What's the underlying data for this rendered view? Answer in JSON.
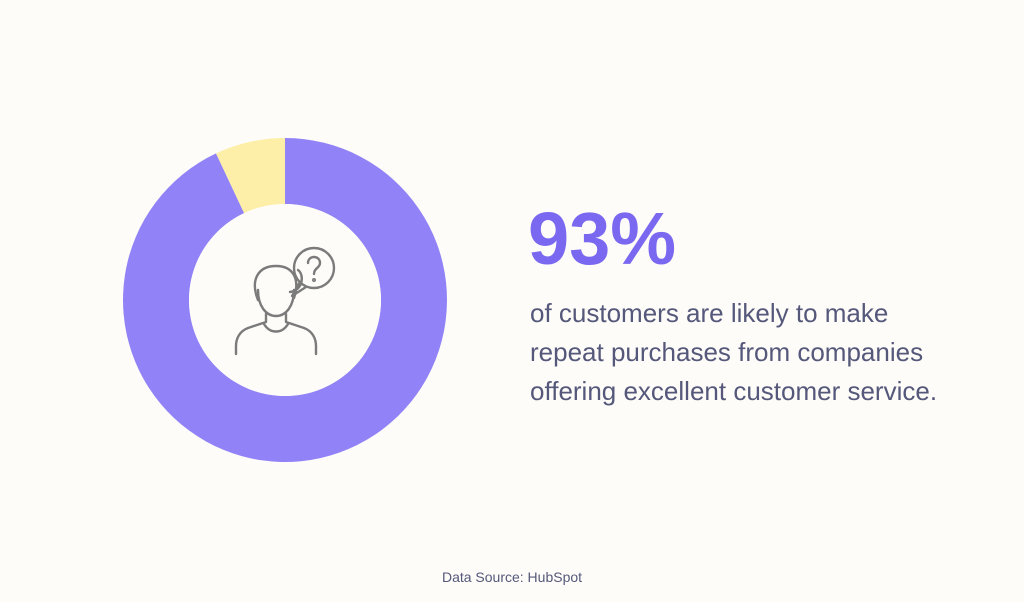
{
  "chart_data": {
    "type": "pie",
    "donut": true,
    "values": [
      93,
      7
    ],
    "value_labels": [
      "93%",
      null
    ],
    "colors": [
      "#9183f7",
      "#fdefa8"
    ],
    "annotation_lines": [
      "of customers are likely to make",
      "repeat purchases from companies",
      "offering excellent customer service."
    ],
    "source": "Data Source: HubSpot"
  }
}
